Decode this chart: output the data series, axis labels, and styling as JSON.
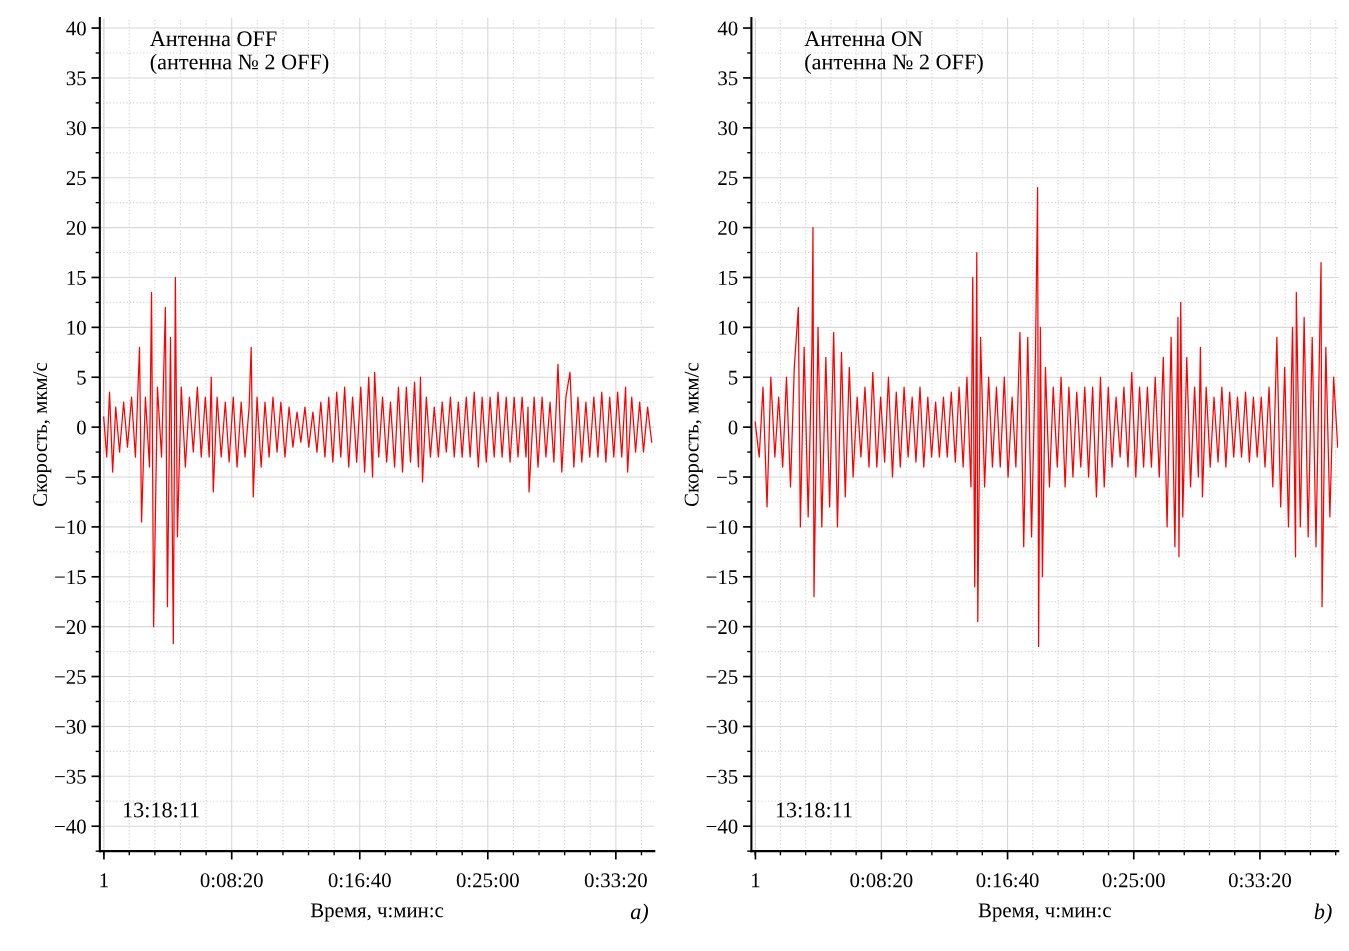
{
  "chart_data": [
    {
      "type": "line",
      "xlabel": "Время, ч:мин:с",
      "ylabel": "Скорость, мкм/с",
      "annotations": [
        "Антенна OFF\n(антенна № 2 OFF)",
        "13:18:11",
        "a)"
      ],
      "x": [
        0,
        12,
        23,
        35,
        47,
        62,
        78,
        93,
        109,
        124,
        140,
        148,
        163,
        179,
        187,
        195,
        210,
        226,
        241,
        249,
        261,
        272,
        280,
        288,
        303,
        319,
        335,
        350,
        366,
        381,
        397,
        412,
        420,
        428,
        443,
        459,
        475,
        490,
        506,
        521,
        537,
        552,
        568,
        576,
        584,
        599,
        615,
        630,
        646,
        661,
        677,
        692,
        708,
        724,
        739,
        755,
        770,
        786,
        801,
        817,
        833,
        848,
        864,
        879,
        895,
        910,
        926,
        941,
        957,
        972,
        988,
        1004,
        1019,
        1035,
        1050,
        1058,
        1074,
        1089,
        1105,
        1120,
        1136,
        1151,
        1167,
        1182,
        1198,
        1214,
        1229,
        1237,
        1245,
        1260,
        1276,
        1291,
        1307,
        1322,
        1338,
        1354,
        1369,
        1385,
        1400,
        1416,
        1431,
        1447,
        1463,
        1478,
        1494,
        1509,
        1525,
        1540,
        1556,
        1572,
        1587,
        1603,
        1618,
        1634,
        1649,
        1657,
        1661,
        1681,
        1696,
        1712,
        1727,
        1743,
        1758,
        1774,
        1789,
        1805,
        1821,
        1836,
        1852,
        1867,
        1883,
        1898,
        1914,
        1930,
        1945,
        1961,
        1976,
        1992,
        2007,
        2023,
        2038,
        2046,
        2062,
        2077,
        2093,
        2108,
        2124,
        2140
      ],
      "series": [
        {
          "color": "#ff0000",
          "values": [
            1,
            -3,
            3.5,
            -4.5,
            2,
            -2.5,
            2.5,
            -2,
            3,
            -3,
            8,
            -9.5,
            3,
            -4,
            13.5,
            -20,
            4,
            -3,
            12,
            -18,
            9,
            -21.7,
            15,
            -11,
            4,
            -4,
            3,
            -2.5,
            4,
            -3,
            3,
            -3,
            5,
            -6.5,
            3,
            -3,
            2.5,
            -3.5,
            3,
            -4,
            2.5,
            -3,
            2,
            8,
            -7,
            3,
            -4,
            2.5,
            -3,
            3,
            -2.5,
            2.5,
            -3,
            2,
            -2,
            1.5,
            -1.5,
            2,
            -2,
            1.5,
            -2.5,
            2.5,
            -3,
            3,
            -3.5,
            3.5,
            -3,
            4,
            -4,
            3,
            -3.5,
            4,
            -4.5,
            5,
            -5,
            5.5,
            -3,
            3,
            -3.5,
            2.5,
            -4,
            4,
            -4.5,
            4,
            -3.5,
            4.5,
            -4,
            5,
            -5.5,
            3,
            -3,
            2,
            -3,
            2.5,
            -2.5,
            3,
            -3,
            2.5,
            -3,
            3,
            -3,
            3.5,
            -4,
            3,
            -3.5,
            3,
            -3,
            3.5,
            -3,
            3,
            -3.5,
            3,
            -3,
            3,
            -3,
            2,
            -6.5,
            3,
            -4,
            3,
            -3,
            2.5,
            -3.5,
            6.3,
            -4.5,
            3,
            5.5,
            -4,
            3,
            -3.5,
            2.5,
            -3,
            3,
            -3,
            3.5,
            -3.5,
            3,
            -3,
            3.5,
            -3,
            4,
            -4.5,
            3,
            -2.5,
            2.5,
            -2.5,
            2,
            -1.5
          ]
        }
      ],
      "xlim": [
        -15,
        2150
      ],
      "xticks": [
        1,
        {
          "value": 500,
          "label": "0:08:20"
        },
        {
          "value": 1000,
          "label": "0:16:40"
        },
        {
          "value": 1500,
          "label": "0:25:00"
        },
        {
          "value": 2000,
          "label": "0:33:20"
        }
      ],
      "ylim": [
        -42.5,
        41
      ],
      "yticks": [
        {
          "value": -40,
          "label": "−40"
        },
        {
          "value": -35,
          "label": "−35"
        },
        {
          "value": -30,
          "label": "−30"
        },
        {
          "value": -25,
          "label": "−25"
        },
        {
          "value": -20,
          "label": "−20"
        },
        {
          "value": -15,
          "label": "−15"
        },
        {
          "value": -10,
          "label": "−10"
        },
        {
          "value": -5,
          "label": "−5"
        },
        0,
        5,
        10,
        15,
        20,
        25,
        30,
        35,
        40
      ],
      "grid": true,
      "line_style": "solid"
    },
    {
      "type": "line",
      "xlabel": "Время, ч:мин:с",
      "ylabel": "Скорость, мкм/с",
      "annotations": [
        "Антенна ON\n(антенна № 2 OFF)",
        "13:18:11",
        "b)"
      ],
      "x": [
        0,
        16,
        31,
        47,
        62,
        78,
        93,
        109,
        124,
        140,
        155,
        171,
        179,
        194,
        210,
        225,
        229,
        233,
        249,
        264,
        280,
        295,
        311,
        326,
        342,
        357,
        373,
        388,
        404,
        419,
        435,
        451,
        466,
        482,
        497,
        513,
        528,
        544,
        559,
        575,
        590,
        606,
        622,
        637,
        653,
        668,
        684,
        699,
        715,
        730,
        746,
        761,
        777,
        793,
        808,
        824,
        839,
        855,
        862,
        870,
        878,
        882,
        893,
        909,
        925,
        940,
        956,
        971,
        987,
        1002,
        1018,
        1033,
        1049,
        1064,
        1080,
        1095,
        1111,
        1119,
        1123,
        1130,
        1138,
        1150,
        1166,
        1181,
        1197,
        1212,
        1228,
        1243,
        1259,
        1274,
        1290,
        1306,
        1321,
        1337,
        1352,
        1368,
        1383,
        1399,
        1414,
        1430,
        1446,
        1461,
        1477,
        1492,
        1508,
        1523,
        1539,
        1554,
        1570,
        1585,
        1601,
        1617,
        1632,
        1648,
        1663,
        1675,
        1679,
        1686,
        1694,
        1710,
        1725,
        1741,
        1756,
        1764,
        1772,
        1787,
        1803,
        1818,
        1834,
        1849,
        1865,
        1880,
        1896,
        1911,
        1927,
        1943,
        1958,
        1974,
        1989,
        2005,
        2020,
        2036,
        2051,
        2067,
        2082,
        2098,
        2113,
        2129,
        2141,
        2144,
        2160,
        2175,
        2191,
        2207,
        2222,
        2238,
        2242,
        2246,
        2261,
        2277,
        2292,
        2308
      ],
      "series": [
        {
          "color": "#ff0000",
          "values": [
            0.5,
            -3,
            4,
            -8,
            5,
            -3,
            3,
            -4,
            5,
            -6,
            6,
            12,
            -10,
            8,
            -9,
            8,
            20,
            -17,
            10,
            -10,
            7,
            -8,
            9.5,
            -10,
            7.5,
            -7,
            6,
            -5,
            3,
            -3,
            4,
            -4,
            5.5,
            -4,
            3,
            -3.5,
            5,
            -5,
            3.5,
            -4,
            4,
            -3,
            3,
            -3.5,
            4,
            -4,
            3,
            -3,
            2.5,
            -3,
            3,
            -3,
            3.5,
            -3.5,
            4,
            -4,
            5,
            -6,
            15,
            -16,
            17.5,
            -19.5,
            9,
            -6,
            5,
            -4,
            4,
            -4,
            5,
            -5,
            3,
            -4,
            9.5,
            -12,
            9,
            -11,
            8,
            24,
            -22,
            10,
            -15,
            6,
            -6,
            4,
            -4,
            5,
            -6,
            4,
            -5,
            3.5,
            -4,
            4,
            -5,
            4,
            -7,
            5,
            -6,
            4,
            -4,
            3,
            -3,
            4,
            -4,
            5.5,
            -5,
            4,
            -4,
            4,
            -4,
            5,
            -5,
            7,
            -10,
            9,
            -12,
            11,
            -13,
            12.5,
            -9,
            7,
            -6,
            4,
            -5,
            8,
            -7,
            4,
            -4,
            3,
            -3.5,
            4,
            -4,
            3.5,
            -3,
            3,
            -3,
            3.5,
            -3.5,
            3,
            -3,
            3,
            -4,
            4,
            -6,
            9,
            -8,
            6,
            -10,
            10,
            -13,
            13.5,
            -10,
            11,
            -11,
            9,
            -12,
            11,
            16.5,
            -18,
            8,
            -9,
            5,
            -2
          ]
        }
      ],
      "xlim": [
        -15,
        2310
      ],
      "xticks": [
        1,
        {
          "value": 500,
          "label": "0:08:20"
        },
        {
          "value": 1000,
          "label": "0:16:40"
        },
        {
          "value": 1500,
          "label": "0:25:00"
        },
        {
          "value": 2000,
          "label": "0:33:20"
        }
      ],
      "ylim": [
        -42.5,
        41
      ],
      "yticks": [
        {
          "value": -40,
          "label": "−40"
        },
        {
          "value": -35,
          "label": "−35"
        },
        {
          "value": -30,
          "label": "−30"
        },
        {
          "value": -25,
          "label": "−25"
        },
        {
          "value": -20,
          "label": "−20"
        },
        {
          "value": -15,
          "label": "−15"
        },
        {
          "value": -10,
          "label": "−10"
        },
        {
          "value": -5,
          "label": "−5"
        },
        0,
        5,
        10,
        15,
        20,
        25,
        30,
        35,
        40
      ],
      "grid": true,
      "line_style": "solid"
    }
  ]
}
